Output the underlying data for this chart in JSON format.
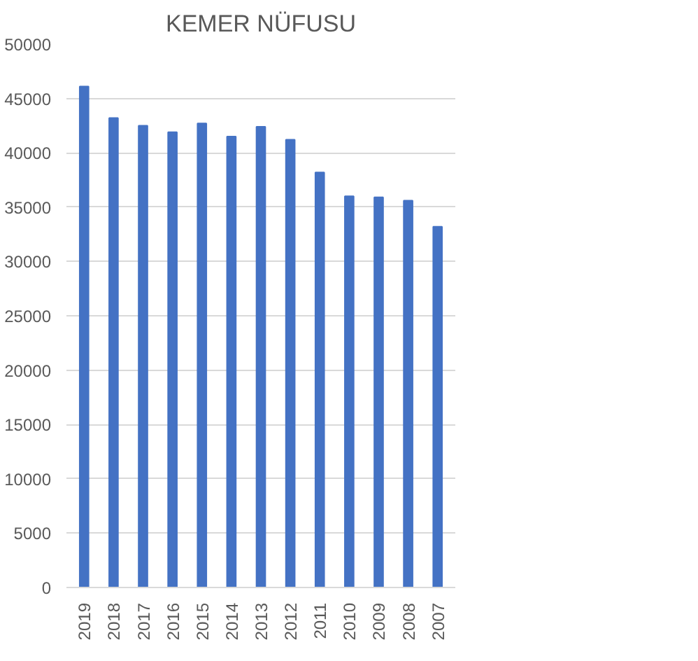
{
  "chart_data": {
    "type": "bar",
    "title": "KEMER NÜFUSU",
    "categories": [
      "2019",
      "2018",
      "2017",
      "2016",
      "2015",
      "2014",
      "2013",
      "2012",
      "2011",
      "2010",
      "2009",
      "2008",
      "2007"
    ],
    "values": [
      46100,
      43200,
      42500,
      41900,
      42700,
      41500,
      42400,
      41200,
      38200,
      36000,
      35900,
      35600,
      33200
    ],
    "color": "#4472c4",
    "ylim": [
      0,
      50000
    ],
    "yticks": [
      0,
      5000,
      10000,
      15000,
      20000,
      25000,
      30000,
      35000,
      40000,
      45000,
      50000
    ],
    "grid": "y"
  }
}
